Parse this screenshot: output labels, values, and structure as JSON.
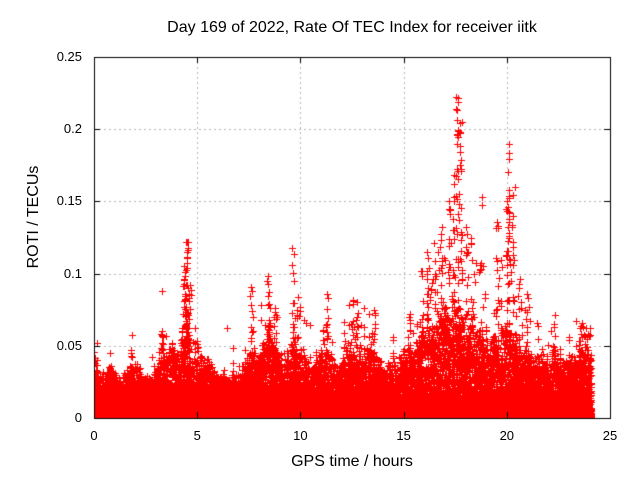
{
  "chart_data": {
    "type": "scatter",
    "title": "Day 169 of 2022, Rate Of TEC Index for receiver iitk",
    "xlabel": "GPS time / hours",
    "ylabel": "ROTI / TECUs",
    "xlim": [
      0,
      25
    ],
    "ylim": [
      0,
      0.25
    ],
    "xticks": [
      0,
      5,
      10,
      15,
      20,
      25
    ],
    "yticks": [
      0,
      0.05,
      0.1,
      0.15,
      0.2,
      0.25
    ],
    "x_tick_labels": [
      "0",
      "5",
      "10",
      "15",
      "20",
      "25"
    ],
    "y_tick_labels": [
      "0",
      "0.05",
      "0.1",
      "0.15",
      "0.2",
      "0.25"
    ],
    "grid": true,
    "legend": "none",
    "marker": "plus-cross",
    "marker_size_px": 7,
    "marker_color": "#ff0000",
    "grid_color": "#b9b9b9",
    "border_color": "#000000",
    "background_color": "#ffffff",
    "data_span_hours": [
      0,
      24.1
    ],
    "max_point": {
      "hour": 17.6,
      "roti": 0.222
    },
    "note": "Dense noisy scatter (~20000 GNSS ROTI samples). baseline_envelope gives the top of the dense red band vs time; spikes lists isolated vertical bursts [hour, peak ROTI, point count]; haze lists sparse scatter regions [h0, h1, roti0, roti1, count].",
    "baseline_envelope": [
      [
        0.0,
        0.046
      ],
      [
        0.15,
        0.038
      ],
      [
        0.3,
        0.028
      ],
      [
        0.5,
        0.026
      ],
      [
        0.7,
        0.031
      ],
      [
        0.9,
        0.033
      ],
      [
        1.1,
        0.028
      ],
      [
        1.3,
        0.026
      ],
      [
        1.5,
        0.03
      ],
      [
        1.7,
        0.035
      ],
      [
        1.9,
        0.033
      ],
      [
        2.1,
        0.036
      ],
      [
        2.3,
        0.03
      ],
      [
        2.5,
        0.027
      ],
      [
        2.7,
        0.029
      ],
      [
        2.9,
        0.031
      ],
      [
        3.1,
        0.04
      ],
      [
        3.3,
        0.052
      ],
      [
        3.5,
        0.036
      ],
      [
        3.7,
        0.05
      ],
      [
        3.9,
        0.042
      ],
      [
        4.1,
        0.048
      ],
      [
        4.3,
        0.058
      ],
      [
        4.5,
        0.066
      ],
      [
        4.7,
        0.048
      ],
      [
        4.9,
        0.046
      ],
      [
        5.1,
        0.04
      ],
      [
        5.3,
        0.036
      ],
      [
        5.5,
        0.042
      ],
      [
        5.7,
        0.036
      ],
      [
        5.9,
        0.03
      ],
      [
        6.1,
        0.028
      ],
      [
        6.3,
        0.032
      ],
      [
        6.5,
        0.03
      ],
      [
        6.7,
        0.028
      ],
      [
        6.9,
        0.03
      ],
      [
        7.1,
        0.032
      ],
      [
        7.3,
        0.036
      ],
      [
        7.5,
        0.04
      ],
      [
        7.7,
        0.048
      ],
      [
        7.9,
        0.042
      ],
      [
        8.1,
        0.046
      ],
      [
        8.3,
        0.052
      ],
      [
        8.5,
        0.058
      ],
      [
        8.7,
        0.054
      ],
      [
        8.9,
        0.044
      ],
      [
        9.1,
        0.038
      ],
      [
        9.3,
        0.04
      ],
      [
        9.5,
        0.044
      ],
      [
        9.7,
        0.052
      ],
      [
        9.9,
        0.046
      ],
      [
        10.1,
        0.042
      ],
      [
        10.3,
        0.038
      ],
      [
        10.5,
        0.034
      ],
      [
        10.7,
        0.038
      ],
      [
        10.9,
        0.044
      ],
      [
        11.1,
        0.048
      ],
      [
        11.3,
        0.052
      ],
      [
        11.5,
        0.04
      ],
      [
        11.7,
        0.034
      ],
      [
        11.9,
        0.038
      ],
      [
        12.1,
        0.042
      ],
      [
        12.3,
        0.048
      ],
      [
        12.5,
        0.054
      ],
      [
        12.7,
        0.048
      ],
      [
        12.9,
        0.044
      ],
      [
        13.1,
        0.042
      ],
      [
        13.3,
        0.046
      ],
      [
        13.5,
        0.05
      ],
      [
        13.7,
        0.042
      ],
      [
        13.9,
        0.036
      ],
      [
        14.1,
        0.032
      ],
      [
        14.3,
        0.034
      ],
      [
        14.5,
        0.04
      ],
      [
        14.7,
        0.036
      ],
      [
        14.9,
        0.04
      ],
      [
        15.1,
        0.044
      ],
      [
        15.3,
        0.048
      ],
      [
        15.5,
        0.044
      ],
      [
        15.7,
        0.05
      ],
      [
        15.9,
        0.058
      ],
      [
        16.1,
        0.062
      ],
      [
        16.3,
        0.058
      ],
      [
        16.5,
        0.064
      ],
      [
        16.7,
        0.068
      ],
      [
        16.9,
        0.072
      ],
      [
        17.1,
        0.07
      ],
      [
        17.3,
        0.076
      ],
      [
        17.5,
        0.082
      ],
      [
        17.7,
        0.08
      ],
      [
        17.9,
        0.072
      ],
      [
        18.1,
        0.066
      ],
      [
        18.3,
        0.062
      ],
      [
        18.5,
        0.058
      ],
      [
        18.7,
        0.056
      ],
      [
        18.9,
        0.052
      ],
      [
        19.1,
        0.05
      ],
      [
        19.3,
        0.056
      ],
      [
        19.5,
        0.062
      ],
      [
        19.7,
        0.058
      ],
      [
        19.9,
        0.064
      ],
      [
        20.1,
        0.068
      ],
      [
        20.3,
        0.06
      ],
      [
        20.5,
        0.052
      ],
      [
        20.7,
        0.046
      ],
      [
        20.9,
        0.048
      ],
      [
        21.1,
        0.044
      ],
      [
        21.3,
        0.04
      ],
      [
        21.5,
        0.042
      ],
      [
        21.7,
        0.038
      ],
      [
        21.9,
        0.04
      ],
      [
        22.1,
        0.042
      ],
      [
        22.3,
        0.044
      ],
      [
        22.5,
        0.04
      ],
      [
        22.7,
        0.036
      ],
      [
        22.9,
        0.038
      ],
      [
        23.1,
        0.04
      ],
      [
        23.3,
        0.044
      ],
      [
        23.5,
        0.048
      ],
      [
        23.7,
        0.044
      ],
      [
        23.9,
        0.05
      ],
      [
        24.1,
        0.046
      ]
    ],
    "spikes": [
      [
        1.8,
        0.047,
        5
      ],
      [
        3.3,
        0.06,
        7
      ],
      [
        4.4,
        0.105,
        16
      ],
      [
        4.5,
        0.122,
        22
      ],
      [
        4.65,
        0.092,
        10
      ],
      [
        5.0,
        0.053,
        5
      ],
      [
        7.6,
        0.091,
        9
      ],
      [
        8.45,
        0.098,
        14
      ],
      [
        8.75,
        0.076,
        8
      ],
      [
        9.65,
        0.118,
        13
      ],
      [
        10.2,
        0.068,
        6
      ],
      [
        11.3,
        0.086,
        8
      ],
      [
        12.55,
        0.082,
        9
      ],
      [
        12.75,
        0.07,
        6
      ],
      [
        13.6,
        0.075,
        8
      ],
      [
        14.5,
        0.056,
        5
      ],
      [
        15.3,
        0.068,
        6
      ],
      [
        15.9,
        0.102,
        9
      ],
      [
        16.15,
        0.115,
        10
      ],
      [
        16.5,
        0.1,
        8
      ],
      [
        16.85,
        0.132,
        13
      ],
      [
        17.2,
        0.15,
        12
      ],
      [
        17.45,
        0.168,
        12
      ],
      [
        17.6,
        0.222,
        28
      ],
      [
        17.78,
        0.205,
        18
      ],
      [
        18.05,
        0.132,
        8
      ],
      [
        18.3,
        0.125,
        8
      ],
      [
        18.7,
        0.107,
        8
      ],
      [
        18.85,
        0.153,
        3
      ],
      [
        19.0,
        0.086,
        6
      ],
      [
        19.5,
        0.136,
        10
      ],
      [
        20.0,
        0.15,
        12
      ],
      [
        20.1,
        0.19,
        20
      ],
      [
        20.3,
        0.16,
        11
      ],
      [
        20.6,
        0.096,
        6
      ],
      [
        21.0,
        0.086,
        6
      ],
      [
        21.5,
        0.066,
        5
      ],
      [
        22.3,
        0.065,
        5
      ],
      [
        23.0,
        0.056,
        4
      ],
      [
        23.6,
        0.066,
        6
      ],
      [
        23.9,
        0.058,
        5
      ]
    ],
    "haze": [
      [
        4.3,
        4.7,
        0.055,
        0.095,
        12
      ],
      [
        8.3,
        8.9,
        0.05,
        0.08,
        12
      ],
      [
        9.5,
        10.0,
        0.05,
        0.09,
        8
      ],
      [
        12.3,
        13.1,
        0.05,
        0.07,
        10
      ],
      [
        15.2,
        16.0,
        0.05,
        0.085,
        10
      ],
      [
        16.0,
        18.6,
        0.07,
        0.125,
        35
      ],
      [
        19.3,
        20.6,
        0.07,
        0.115,
        18
      ],
      [
        20.6,
        21.2,
        0.05,
        0.08,
        8
      ],
      [
        23.4,
        24.0,
        0.045,
        0.06,
        8
      ]
    ]
  }
}
